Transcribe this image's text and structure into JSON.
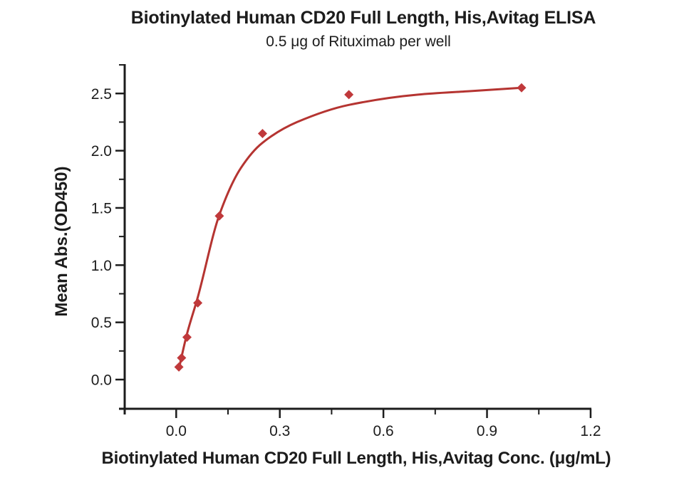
{
  "chart_data": {
    "type": "scatter",
    "title": "Biotinylated Human CD20 Full Length, His,Avitag ELISA",
    "subtitle": "0.5 μg of Rituximab per well",
    "xlabel": "Biotinylated Human CD20 Full Length, His,Avitag Conc. (μg/mL)",
    "ylabel": "Mean Abs.(OD450)",
    "points": [
      {
        "x": 0.0078,
        "y": 0.11
      },
      {
        "x": 0.0156,
        "y": 0.19
      },
      {
        "x": 0.0313,
        "y": 0.37
      },
      {
        "x": 0.0625,
        "y": 0.67
      },
      {
        "x": 0.125,
        "y": 1.43
      },
      {
        "x": 0.25,
        "y": 2.15
      },
      {
        "x": 0.5,
        "y": 2.49
      },
      {
        "x": 1.0,
        "y": 2.55
      }
    ],
    "fit_curve": [
      [
        0.0078,
        0.09
      ],
      [
        0.0156,
        0.2
      ],
      [
        0.0313,
        0.4
      ],
      [
        0.0625,
        0.72
      ],
      [
        0.125,
        1.44
      ],
      [
        0.1875,
        1.85
      ],
      [
        0.25,
        2.07
      ],
      [
        0.35,
        2.25
      ],
      [
        0.5,
        2.4
      ],
      [
        0.7,
        2.49
      ],
      [
        0.85,
        2.52
      ],
      [
        1.0,
        2.55
      ]
    ],
    "marker": "diamond",
    "grid": false,
    "legend": "none",
    "xlim": [
      -0.15,
      1.2
    ],
    "ylim": [
      -0.26,
      2.77
    ],
    "x_ticks": {
      "values": [
        0,
        0.3,
        0.6,
        0.9,
        1.2
      ],
      "labels": [
        "0.0",
        "0.3",
        "0.6",
        "0.9",
        "1.2"
      ],
      "minor": [
        -0.15,
        0.15,
        0.45,
        0.75,
        1.05
      ]
    },
    "y_ticks": {
      "values": [
        0,
        0.5,
        1.0,
        1.5,
        2.0,
        2.5
      ],
      "labels": [
        "0.0",
        "0.5",
        "1.0",
        "1.5",
        "2.0",
        "2.5"
      ],
      "minor": [
        0.25,
        0.75,
        1.25,
        1.75,
        2.25,
        2.75
      ]
    },
    "colors": {
      "curve": "#b53431",
      "marker": "#c0393b",
      "axis": "#1c1c1c",
      "text": "#1c1c1c",
      "background": "#ffffff"
    }
  }
}
